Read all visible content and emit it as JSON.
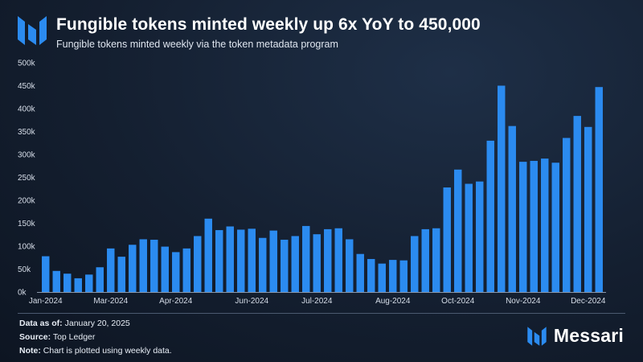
{
  "header": {
    "title": "Fungible tokens minted weekly up 6x YoY to 450,000",
    "subtitle": "Fungible tokens minted weekly via the token metadata program"
  },
  "chart_data": {
    "type": "bar",
    "title": "Fungible tokens minted weekly up 6x YoY to 450,000",
    "subtitle": "Fungible tokens minted weekly via the token metadata program",
    "xlabel": "",
    "ylabel": "",
    "ylim": [
      0,
      500000
    ],
    "yticks": [
      0,
      50000,
      100000,
      150000,
      200000,
      250000,
      300000,
      350000,
      400000,
      450000,
      500000
    ],
    "ytick_labels": [
      "0k",
      "50k",
      "100k",
      "150k",
      "200k",
      "250k",
      "300k",
      "350k",
      "400k",
      "450k",
      "500k"
    ],
    "xtick_labels": [
      "Jan-2024",
      "Mar-2024",
      "Apr-2024",
      "Jun-2024",
      "Jul-2024",
      "Aug-2024",
      "Oct-2024",
      "Nov-2024",
      "Dec-2024"
    ],
    "xtick_bar_index": [
      0,
      6,
      12,
      19,
      25,
      32,
      38,
      44,
      50
    ],
    "grid": false,
    "bar_color": "#2b8bf0",
    "values": [
      78000,
      46000,
      40000,
      30000,
      38000,
      54000,
      95000,
      77000,
      103000,
      115000,
      114000,
      99000,
      87000,
      95000,
      122000,
      160000,
      135000,
      143000,
      136000,
      138000,
      118000,
      134000,
      114000,
      122000,
      144000,
      126000,
      137000,
      139000,
      115000,
      83000,
      72000,
      62000,
      70000,
      69000,
      122000,
      137000,
      139000,
      228000,
      267000,
      236000,
      241000,
      330000,
      450000,
      362000,
      284000,
      286000,
      291000,
      282000,
      336000,
      384000,
      360000,
      447000
    ]
  },
  "footer": {
    "date_label": "Data as of:",
    "date_value": "January 20, 2025",
    "source_label": "Source:",
    "source_value": "Top Ledger",
    "note_label": "Note:",
    "note_value": "Chart is plotted using weekly data."
  },
  "brand": {
    "name": "Messari"
  }
}
